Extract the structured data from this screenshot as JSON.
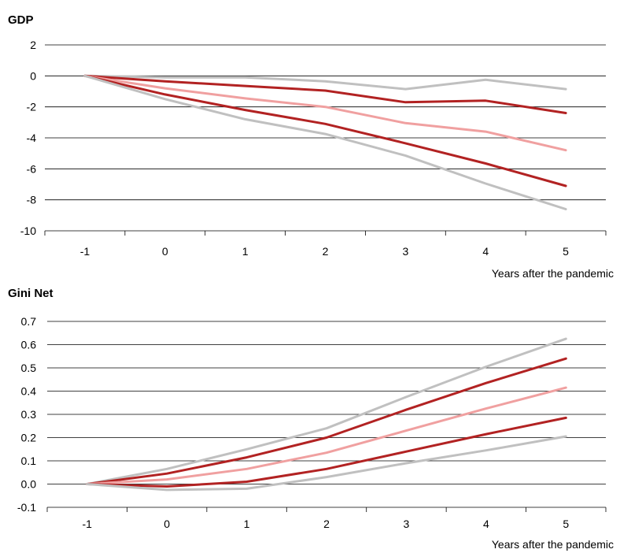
{
  "chart_data": [
    {
      "type": "line",
      "title": "GDP",
      "xlabel": "Years after the pandemic",
      "ylabel": "",
      "x": [
        -1,
        0,
        1,
        2,
        3,
        4,
        5
      ],
      "ylim": [
        -10,
        2
      ],
      "yticks": [
        2,
        0,
        -2,
        -4,
        -6,
        -8,
        -10
      ],
      "grid": true,
      "series": [
        {
          "color": "#c0c0c0",
          "values": [
            0,
            -0.1,
            -0.1,
            -0.35,
            -0.85,
            -0.25,
            -0.85
          ]
        },
        {
          "color": "#b22222",
          "values": [
            0,
            -0.35,
            -0.65,
            -0.95,
            -1.7,
            -1.6,
            -2.4
          ]
        },
        {
          "color": "#f0a0a0",
          "values": [
            0,
            -0.8,
            -1.45,
            -2.0,
            -3.05,
            -3.6,
            -4.8
          ]
        },
        {
          "color": "#b22222",
          "values": [
            0,
            -1.2,
            -2.2,
            -3.1,
            -4.35,
            -5.65,
            -7.1
          ]
        },
        {
          "color": "#c0c0c0",
          "values": [
            0,
            -1.5,
            -2.8,
            -3.75,
            -5.15,
            -6.95,
            -8.6
          ]
        }
      ]
    },
    {
      "type": "line",
      "title": "Gini Net",
      "xlabel": "Years after the pandemic",
      "ylabel": "",
      "x": [
        -1,
        0,
        1,
        2,
        3,
        4,
        5
      ],
      "ylim": [
        -0.1,
        0.7
      ],
      "yticks": [
        "0.7",
        "0.6",
        "0.5",
        "0.4",
        "0.3",
        "0.2",
        "0.1",
        "0.0",
        "-0.1"
      ],
      "grid": true,
      "series": [
        {
          "color": "#c0c0c0",
          "values": [
            0,
            0.065,
            0.15,
            0.24,
            0.375,
            0.505,
            0.625
          ]
        },
        {
          "color": "#b22222",
          "values": [
            0,
            0.045,
            0.115,
            0.2,
            0.32,
            0.435,
            0.54
          ]
        },
        {
          "color": "#f0a0a0",
          "values": [
            0,
            0.02,
            0.065,
            0.135,
            0.23,
            0.325,
            0.415
          ]
        },
        {
          "color": "#b22222",
          "values": [
            0,
            -0.01,
            0.01,
            0.065,
            0.14,
            0.215,
            0.285
          ]
        },
        {
          "color": "#c0c0c0",
          "values": [
            0,
            -0.025,
            -0.02,
            0.03,
            0.09,
            0.145,
            0.205
          ]
        }
      ]
    }
  ]
}
